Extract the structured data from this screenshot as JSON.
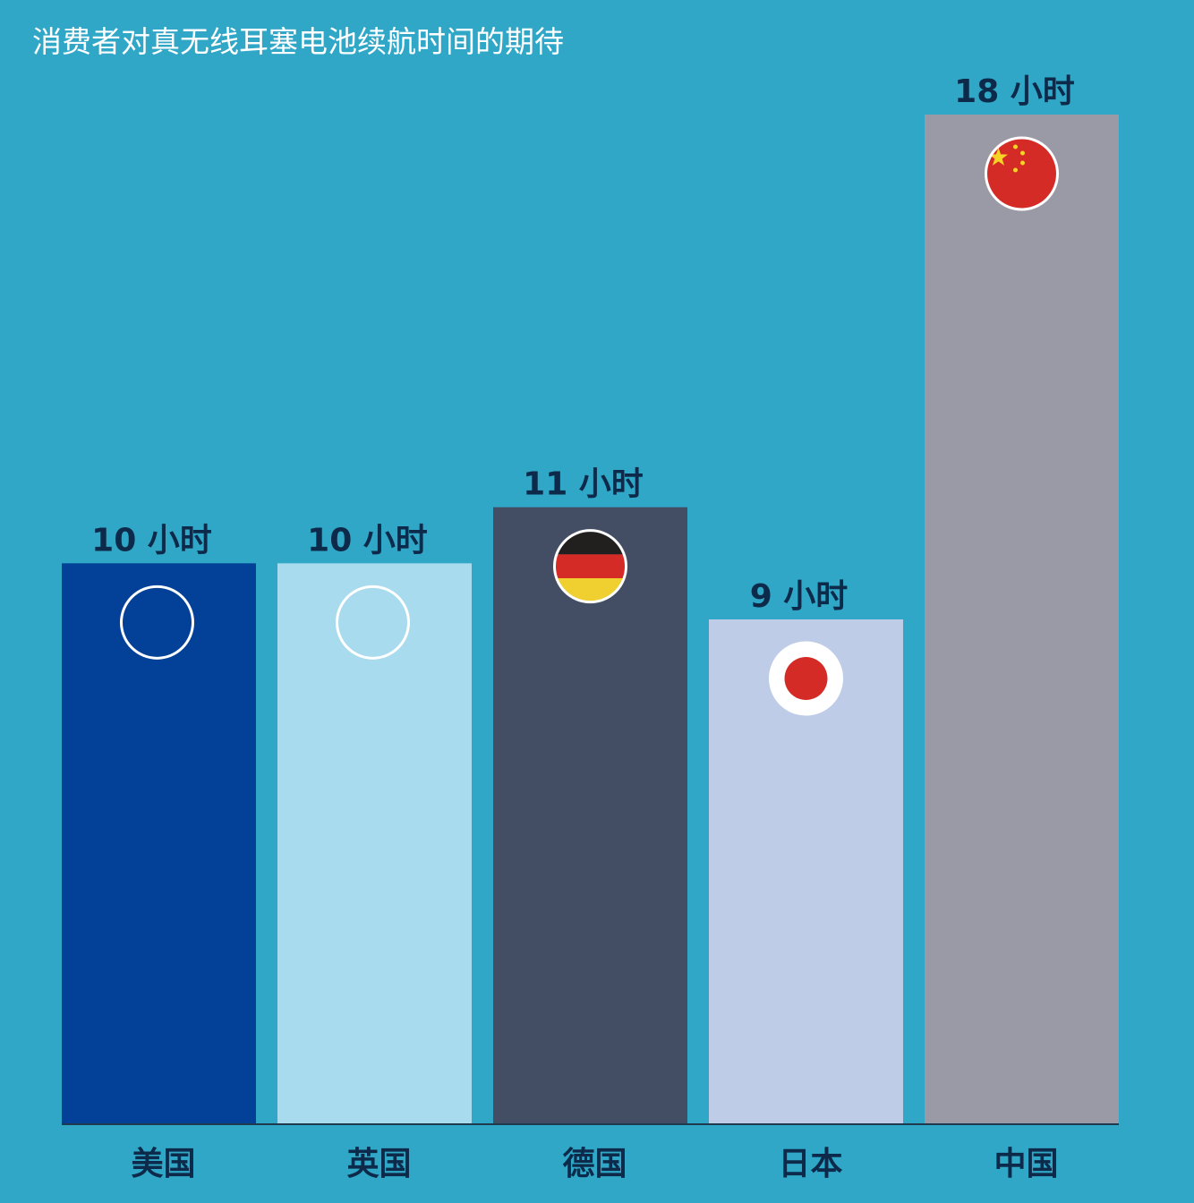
{
  "chart_data": {
    "type": "bar",
    "title": "消费者对真无线耳塞电池续航时间的期待",
    "categories": [
      "美国",
      "英国",
      "德国",
      "日本",
      "中国"
    ],
    "values": [
      10,
      10,
      11,
      9,
      18
    ],
    "data_labels": [
      "10 小时",
      "10 小时",
      "11 小时",
      "9 小时",
      "18 小时"
    ],
    "unit": "小时",
    "ylim": [
      0,
      18
    ],
    "grid": false,
    "bar_colors": [
      "#034098",
      "#a8dbee",
      "#434e64",
      "#bfcce8",
      "#9a99a6"
    ],
    "flags": [
      "us-flag-icon",
      "uk-flag-icon",
      "germany-flag-icon",
      "japan-flag-icon",
      "china-flag-icon"
    ],
    "background_color": "#30a7c7"
  }
}
